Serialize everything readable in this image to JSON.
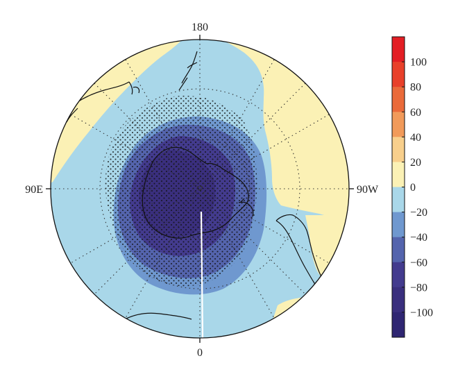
{
  "map": {
    "projection": "south polar stereographic",
    "lon_labels": {
      "top": "180",
      "bottom": "0",
      "left": "90E",
      "right": "90W"
    },
    "gridlines": "dotted",
    "stippling": "significance dots over Antarctic anomaly",
    "field_colors": {
      "ocean_light": "#a9d7e9",
      "land_positive": "#fbf1b5",
      "ring_minus20": "#6f98cf",
      "ring_minus40": "#5464ad",
      "core_minus60": "#433b8e",
      "core_minus80": "#3a2f7e"
    }
  },
  "colorbar": {
    "ticks": [
      "100",
      "80",
      "60",
      "40",
      "20",
      "0",
      "−20",
      "−40",
      "−60",
      "−80",
      "−100"
    ],
    "segments": [
      {
        "color": "#e31e24"
      },
      {
        "color": "#e8402a"
      },
      {
        "color": "#ea6a3a"
      },
      {
        "color": "#f19a5a"
      },
      {
        "color": "#f8cf8c"
      },
      {
        "color": "#fbf1b5"
      },
      {
        "color": "#a9d7e9"
      },
      {
        "color": "#6f98cf"
      },
      {
        "color": "#5464ad"
      },
      {
        "color": "#433b8e"
      },
      {
        "color": "#3a2f7e"
      },
      {
        "color": "#2f2672"
      }
    ]
  }
}
